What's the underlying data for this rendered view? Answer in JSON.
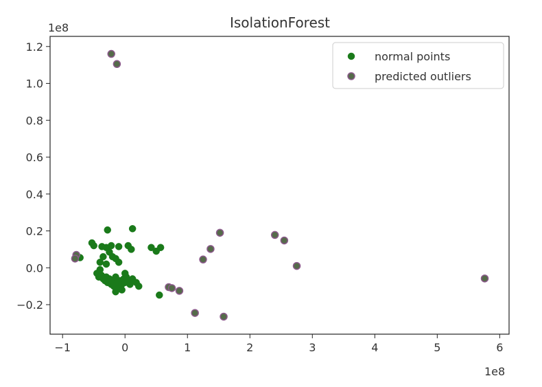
{
  "chart_data": {
    "type": "scatter",
    "title": "IsolationForest",
    "xlabel": "",
    "ylabel": "",
    "x_scale_label": "1e8",
    "y_scale_label": "1e8",
    "xlim": [
      -1.2,
      6.15
    ],
    "ylim": [
      -0.36,
      1.255
    ],
    "x_ticks": [
      -1,
      0,
      1,
      2,
      3,
      4,
      5,
      6
    ],
    "x_tick_labels": [
      "−1",
      "0",
      "1",
      "2",
      "3",
      "4",
      "5",
      "6"
    ],
    "y_ticks": [
      -0.2,
      0.0,
      0.2,
      0.4,
      0.6,
      0.8,
      1.0,
      1.2
    ],
    "y_tick_labels": [
      "−0.2",
      "0.0",
      "0.2",
      "0.4",
      "0.6",
      "0.8",
      "1.0",
      "1.2"
    ],
    "grid": false,
    "legend_position": "top-right",
    "series": [
      {
        "name": "normal points",
        "color": "#1a7a1a",
        "edge_color": "#1a7a1a",
        "points": [
          [
            -0.28,
            0.205
          ],
          [
            0.12,
            0.212
          ],
          [
            -0.53,
            0.135
          ],
          [
            -0.5,
            0.12
          ],
          [
            -0.37,
            0.115
          ],
          [
            -0.3,
            0.11
          ],
          [
            -0.22,
            0.12
          ],
          [
            -0.1,
            0.115
          ],
          [
            0.05,
            0.12
          ],
          [
            0.1,
            0.1
          ],
          [
            0.42,
            0.11
          ],
          [
            0.5,
            0.09
          ],
          [
            0.57,
            0.11
          ],
          [
            -0.72,
            0.055
          ],
          [
            -0.35,
            0.06
          ],
          [
            -0.2,
            0.06
          ],
          [
            -0.25,
            0.085
          ],
          [
            -0.15,
            0.05
          ],
          [
            -0.4,
            0.03
          ],
          [
            -0.3,
            0.02
          ],
          [
            -0.1,
            0.03
          ],
          [
            -0.45,
            -0.03
          ],
          [
            -0.42,
            -0.05
          ],
          [
            -0.38,
            -0.04
          ],
          [
            -0.35,
            -0.06
          ],
          [
            -0.32,
            -0.07
          ],
          [
            -0.3,
            -0.05
          ],
          [
            -0.28,
            -0.08
          ],
          [
            -0.25,
            -0.06
          ],
          [
            -0.22,
            -0.09
          ],
          [
            -0.2,
            -0.07
          ],
          [
            -0.18,
            -0.1
          ],
          [
            -0.15,
            -0.05
          ],
          [
            -0.12,
            -0.08
          ],
          [
            -0.1,
            -0.11
          ],
          [
            -0.08,
            -0.07
          ],
          [
            -0.05,
            -0.09
          ],
          [
            -0.02,
            -0.06
          ],
          [
            0.0,
            -0.08
          ],
          [
            0.02,
            -0.05
          ],
          [
            0.05,
            -0.07
          ],
          [
            0.08,
            -0.09
          ],
          [
            0.12,
            -0.06
          ],
          [
            0.18,
            -0.08
          ],
          [
            0.22,
            -0.1
          ],
          [
            -0.15,
            -0.13
          ],
          [
            -0.05,
            -0.12
          ],
          [
            0.55,
            -0.148
          ],
          [
            -0.4,
            -0.01
          ],
          [
            0.0,
            -0.03
          ]
        ]
      },
      {
        "name": "predicted outliers",
        "color": "#556b4a",
        "edge_color": "#8c5a8c",
        "points": [
          [
            -0.22,
            1.16
          ],
          [
            -0.13,
            1.105
          ],
          [
            1.52,
            0.19
          ],
          [
            2.4,
            0.178
          ],
          [
            2.55,
            0.148
          ],
          [
            1.37,
            0.102
          ],
          [
            1.25,
            0.045
          ],
          [
            2.75,
            0.01
          ],
          [
            -0.78,
            0.07
          ],
          [
            -0.8,
            0.05
          ],
          [
            5.76,
            -0.058
          ],
          [
            0.7,
            -0.105
          ],
          [
            0.75,
            -0.11
          ],
          [
            0.87,
            -0.125
          ],
          [
            1.12,
            -0.245
          ],
          [
            1.58,
            -0.265
          ]
        ]
      }
    ]
  }
}
